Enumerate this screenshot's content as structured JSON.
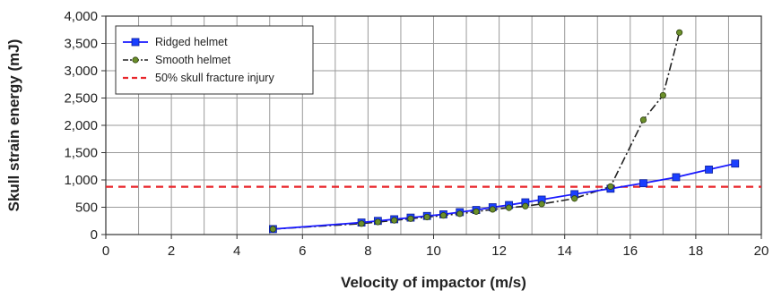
{
  "chart_data": {
    "type": "line",
    "title": "",
    "xlabel": "Velocity of impactor (m/s)",
    "ylabel": "Skull strain energy (mJ)",
    "xlim": [
      0,
      20
    ],
    "ylim": [
      0,
      4000
    ],
    "xticks": [
      0,
      2,
      4,
      6,
      8,
      10,
      12,
      14,
      16,
      18,
      20
    ],
    "xtick_labels": [
      "0",
      "2",
      "4",
      "6",
      "8",
      "10",
      "12",
      "14",
      "16",
      "18",
      "20"
    ],
    "yticks": [
      0,
      500,
      1000,
      1500,
      2000,
      2500,
      3000,
      3500,
      4000
    ],
    "ytick_labels": [
      "0",
      "500",
      "1,000",
      "1,500",
      "2,000",
      "2,500",
      "3,000",
      "3,500",
      "4,000"
    ],
    "grid": true,
    "legend_position": "top-left",
    "series": [
      {
        "name": "Ridged helmet",
        "color": "#1a1aff",
        "marker_color": "#1a3fff",
        "line_style": "solid",
        "marker": "square",
        "x": [
          5.1,
          7.8,
          8.3,
          8.8,
          9.3,
          9.8,
          10.3,
          10.8,
          11.3,
          11.8,
          12.3,
          12.8,
          13.3,
          14.3,
          15.4,
          16.4,
          17.4,
          18.4,
          19.2
        ],
        "y": [
          100,
          220,
          250,
          280,
          310,
          340,
          370,
          410,
          450,
          500,
          540,
          590,
          640,
          740,
          840,
          940,
          1050,
          1190,
          1300
        ]
      },
      {
        "name": "Smooth helmet",
        "color": "#222222",
        "marker_color": "#6b8f2a",
        "line_style": "dash-dot",
        "marker": "circle",
        "x": [
          5.1,
          7.8,
          8.3,
          8.8,
          9.3,
          9.8,
          10.3,
          10.8,
          11.3,
          11.8,
          12.3,
          12.8,
          13.3,
          14.3,
          15.4,
          16.4,
          17.0,
          17.5
        ],
        "y": [
          100,
          200,
          230,
          260,
          290,
          320,
          350,
          380,
          420,
          460,
          490,
          520,
          560,
          660,
          880,
          2100,
          2550,
          3700
        ]
      },
      {
        "name": "50% skull fracture injury",
        "color": "#e8262b",
        "line_style": "dashed",
        "marker": "none",
        "y_constant": 875
      }
    ]
  }
}
